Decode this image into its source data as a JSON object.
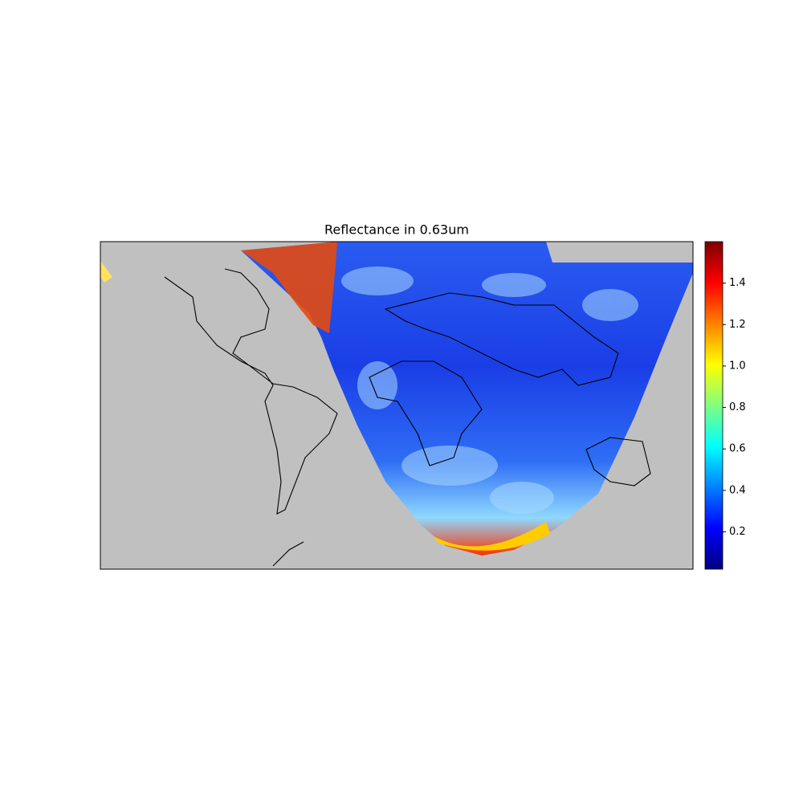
{
  "chart_data": {
    "type": "map",
    "title": "Reflectance in 0.63um",
    "background": "#c0c0c0",
    "colorbar": {
      "lim": [
        0.02,
        1.6
      ],
      "ticks": [
        0.2,
        0.4,
        0.6,
        0.8,
        {
          "value": 1,
          "label": "1.0"
        },
        1.2,
        1.4
      ],
      "colors": [
        "#00007f",
        "#0000ff",
        "#0080ff",
        "#00ffff",
        "#80ff80",
        "#ffff00",
        "#ff8000",
        "#ff0000",
        "#7f0000"
      ]
    }
  }
}
